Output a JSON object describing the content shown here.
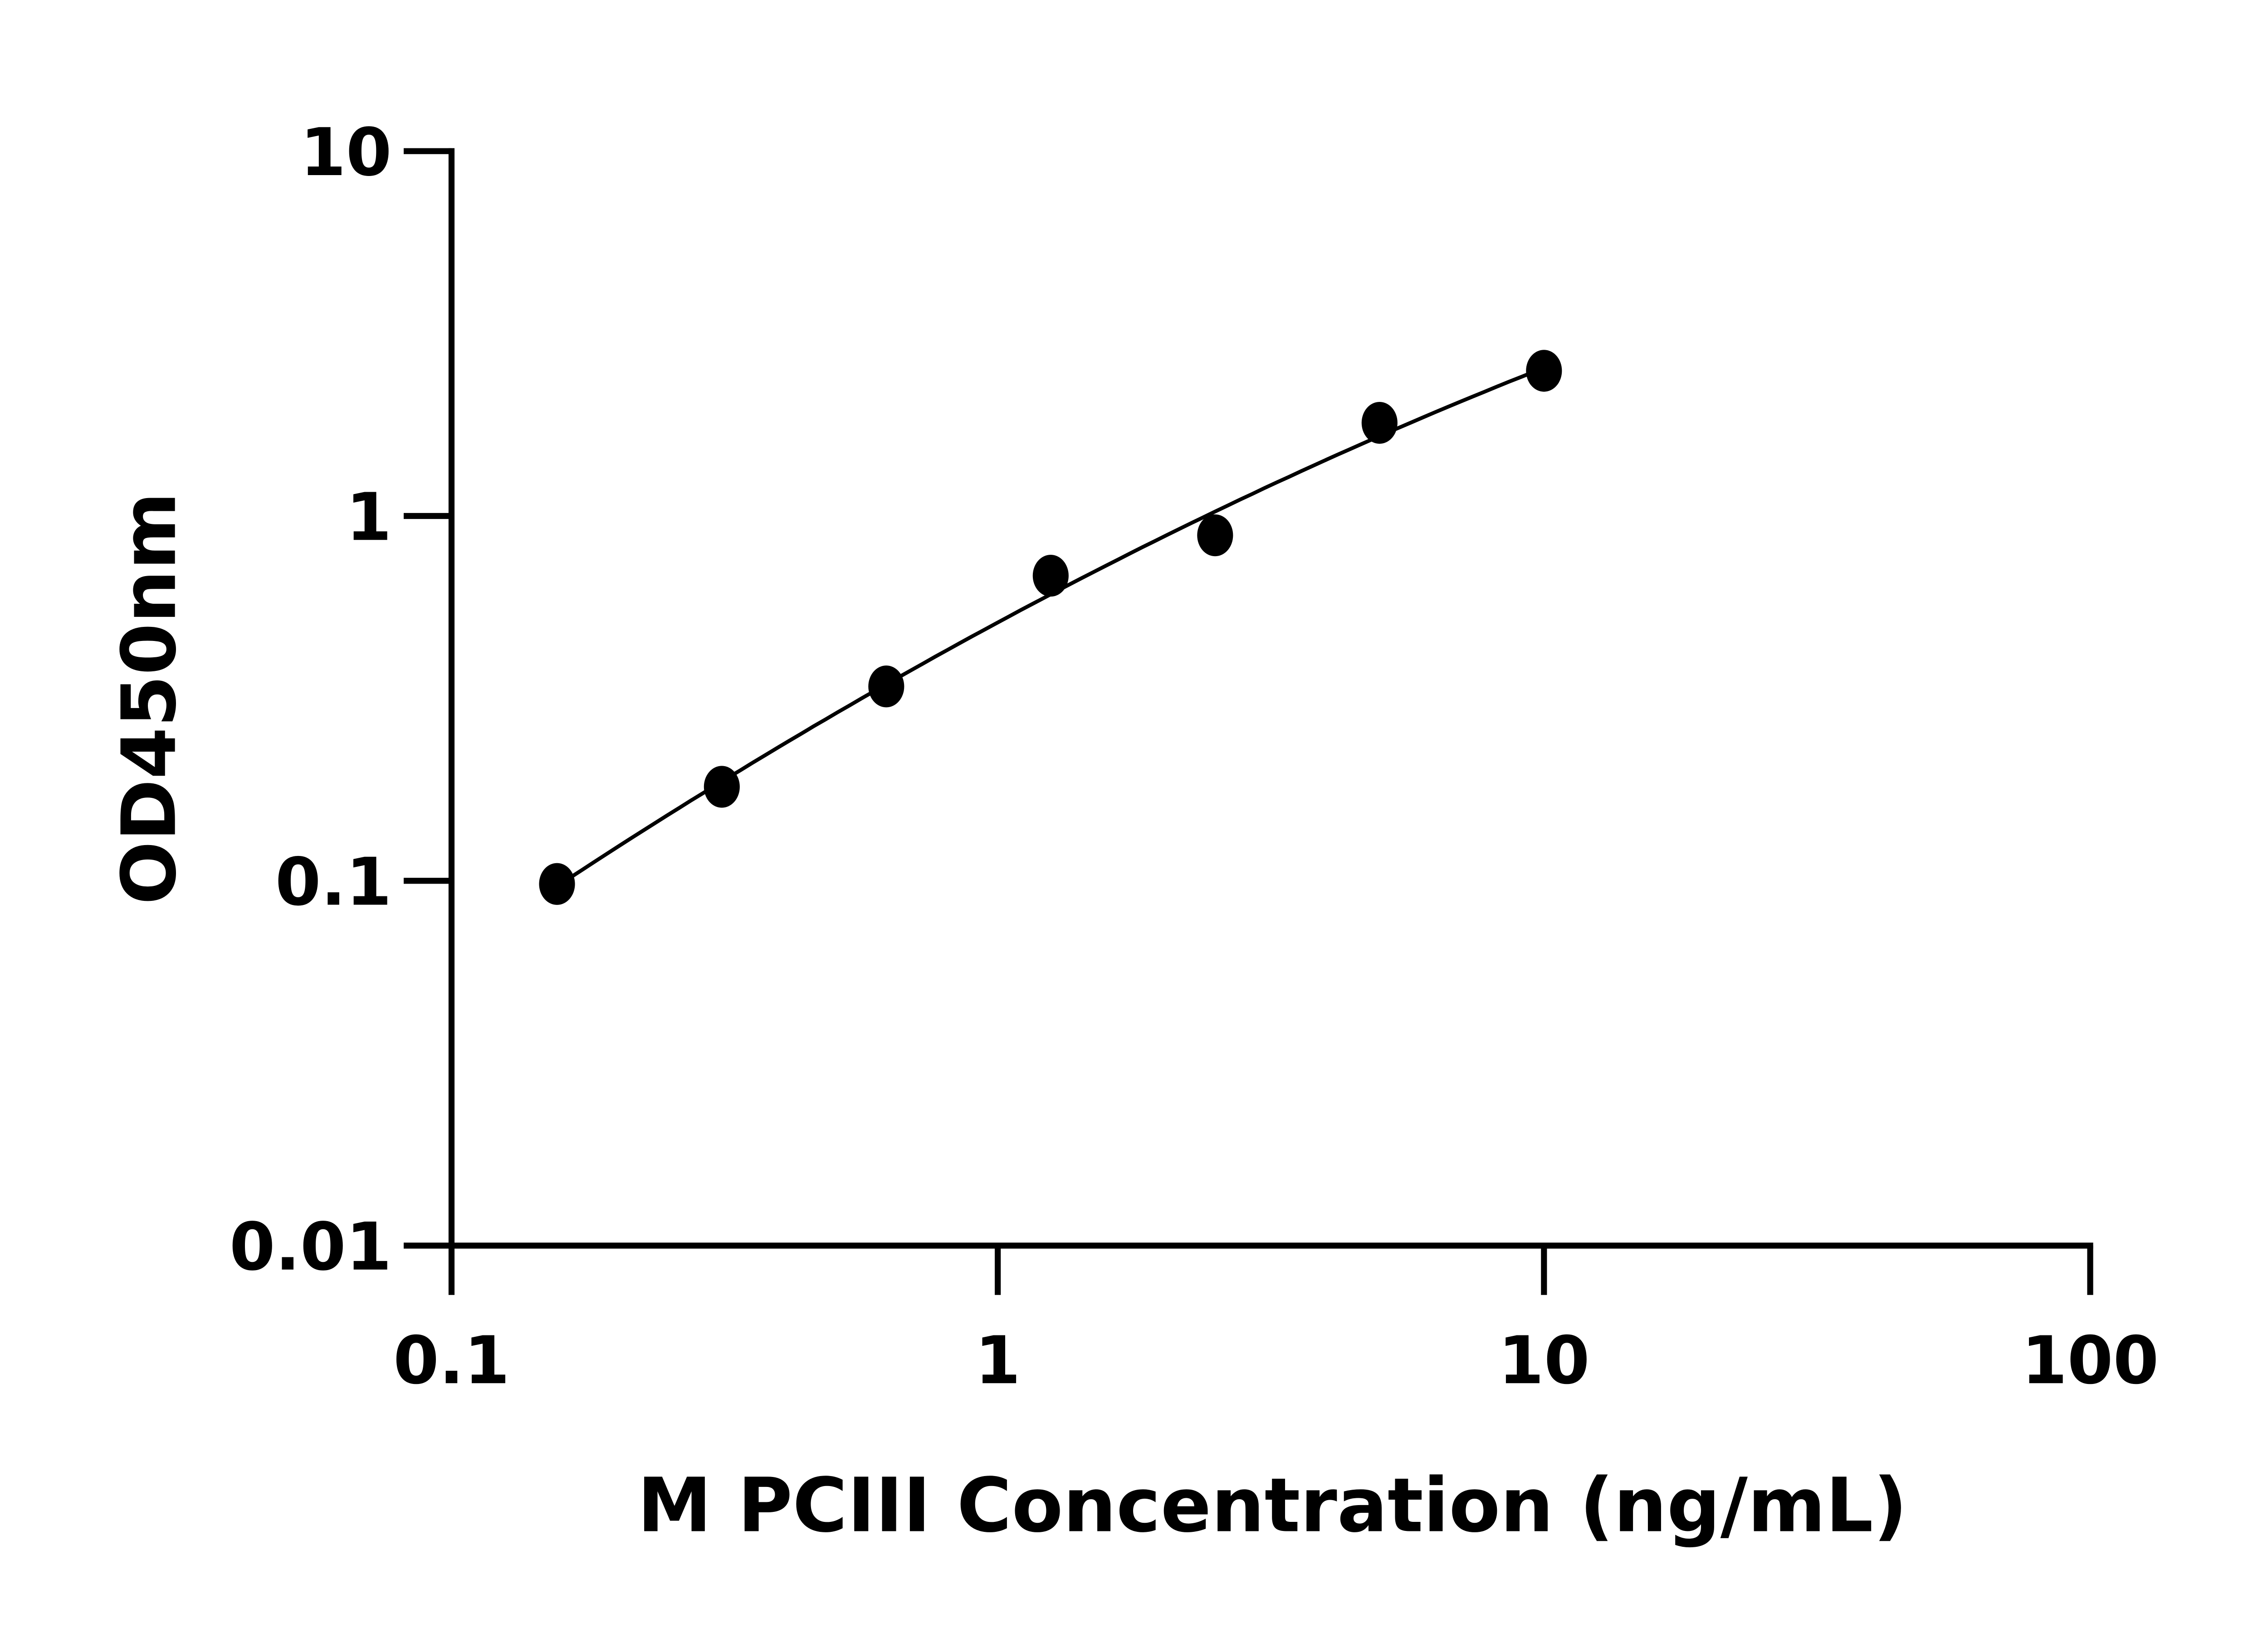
{
  "chart_data": {
    "type": "scatter",
    "title": "",
    "xlabel": "M PCIII Concentration (ng/mL)",
    "ylabel": "OD450nm",
    "x_scale": "log",
    "y_scale": "log",
    "xlim": [
      0.1,
      100
    ],
    "ylim": [
      0.01,
      10
    ],
    "x_ticks": [
      "0.1",
      "1",
      "10",
      "100"
    ],
    "y_ticks": [
      "0.01",
      "0.1",
      "1",
      "10"
    ],
    "grid": false,
    "legend": "none",
    "fit_curve": true,
    "colors": {
      "points": "#000000",
      "curve": "#000000",
      "axes": "#000000"
    },
    "x": [
      0.156,
      0.3125,
      0.625,
      1.25,
      2.5,
      5,
      10
    ],
    "y": [
      0.098,
      0.181,
      0.341,
      0.686,
      0.885,
      1.8,
      2.5
    ]
  }
}
